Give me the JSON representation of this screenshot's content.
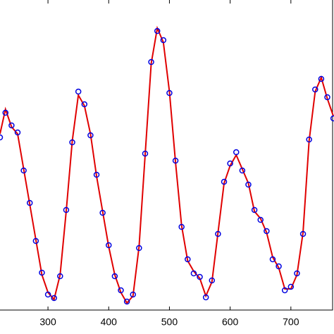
{
  "chart_data": {
    "type": "line",
    "x": [
      221,
      230,
      240,
      250,
      260,
      270,
      280,
      290,
      300,
      310,
      320,
      330,
      340,
      350,
      360,
      370,
      380,
      390,
      400,
      410,
      420,
      430,
      440,
      450,
      460,
      470,
      480,
      490,
      500,
      510,
      520,
      530,
      540,
      550,
      560,
      570,
      580,
      590,
      600,
      610,
      620,
      630,
      640,
      650,
      660,
      670,
      680,
      690,
      700,
      710,
      720,
      730,
      740,
      750,
      760,
      770
    ],
    "series": [
      {
        "color": "#e00000",
        "style": "line",
        "values": [
          250,
          285,
          260,
          250,
          200,
          150,
          100,
          50,
          25,
          15,
          50,
          140,
          240,
          305,
          290,
          250,
          190,
          140,
          90,
          50,
          25,
          10,
          20,
          90,
          220,
          350,
          400,
          380,
          310,
          210,
          120,
          70,
          55,
          45,
          20,
          40,
          110,
          180,
          205,
          220,
          200,
          180,
          140,
          130,
          110,
          75,
          60,
          30,
          30,
          50,
          110,
          240,
          310,
          330,
          300,
          275
        ]
      },
      {
        "color": "#0000e0",
        "style": "circle",
        "values": [
          245,
          280,
          262,
          252,
          198,
          152,
          98,
          53,
          22,
          17,
          48,
          142,
          238,
          310,
          292,
          248,
          192,
          138,
          92,
          48,
          28,
          12,
          22,
          88,
          222,
          352,
          396,
          383,
          308,
          212,
          118,
          72,
          52,
          47,
          18,
          42,
          108,
          182,
          208,
          224,
          198,
          178,
          142,
          128,
          112,
          72,
          62,
          28,
          33,
          52,
          108,
          242,
          313,
          328,
          302,
          272
        ]
      }
    ],
    "xlim": [
      221,
      771
    ],
    "ylim": [
      0,
      440
    ],
    "xticks": [
      300,
      400,
      500,
      600,
      700
    ]
  }
}
